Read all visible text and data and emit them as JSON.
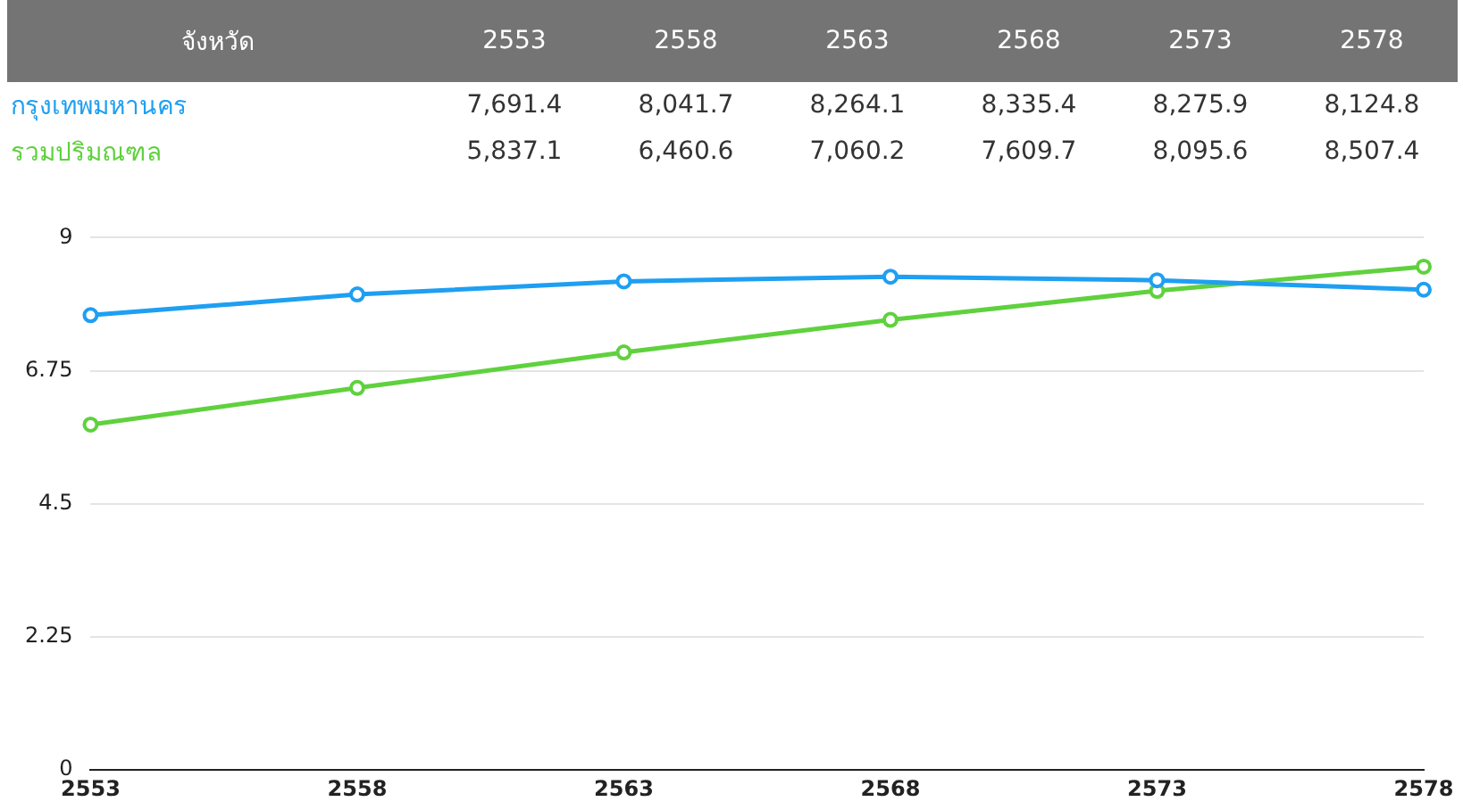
{
  "chart_data": {
    "type": "line",
    "legend_title": "จังหวัด",
    "categories": [
      "2553",
      "2558",
      "2563",
      "2568",
      "2573",
      "2578"
    ],
    "series": [
      {
        "name": "กรุงเทพมหานคร",
        "color": "#1e9ff2",
        "values": [
          7.69,
          8.04,
          8.26,
          8.34,
          8.28,
          8.12
        ]
      },
      {
        "name": "รวมปริมณฑล",
        "color": "#5fd13e",
        "values": [
          5.84,
          6.46,
          7.06,
          7.61,
          8.1,
          8.51
        ]
      }
    ],
    "annotations": [
      "7,691.4",
      "8,041.7",
      "8,264.1",
      "8,335.4",
      "8,275.9",
      "8,124.8",
      "5,837.1",
      "6,460.6",
      "7,060.2",
      "7,609.7",
      "8,095.6",
      "8,507.4"
    ],
    "ylim": [
      0,
      9
    ],
    "yticks": [
      0,
      2.25,
      4.5,
      6.75,
      9
    ],
    "grid": "y",
    "marker": "circle",
    "line_style": "solid",
    "legend": false
  }
}
